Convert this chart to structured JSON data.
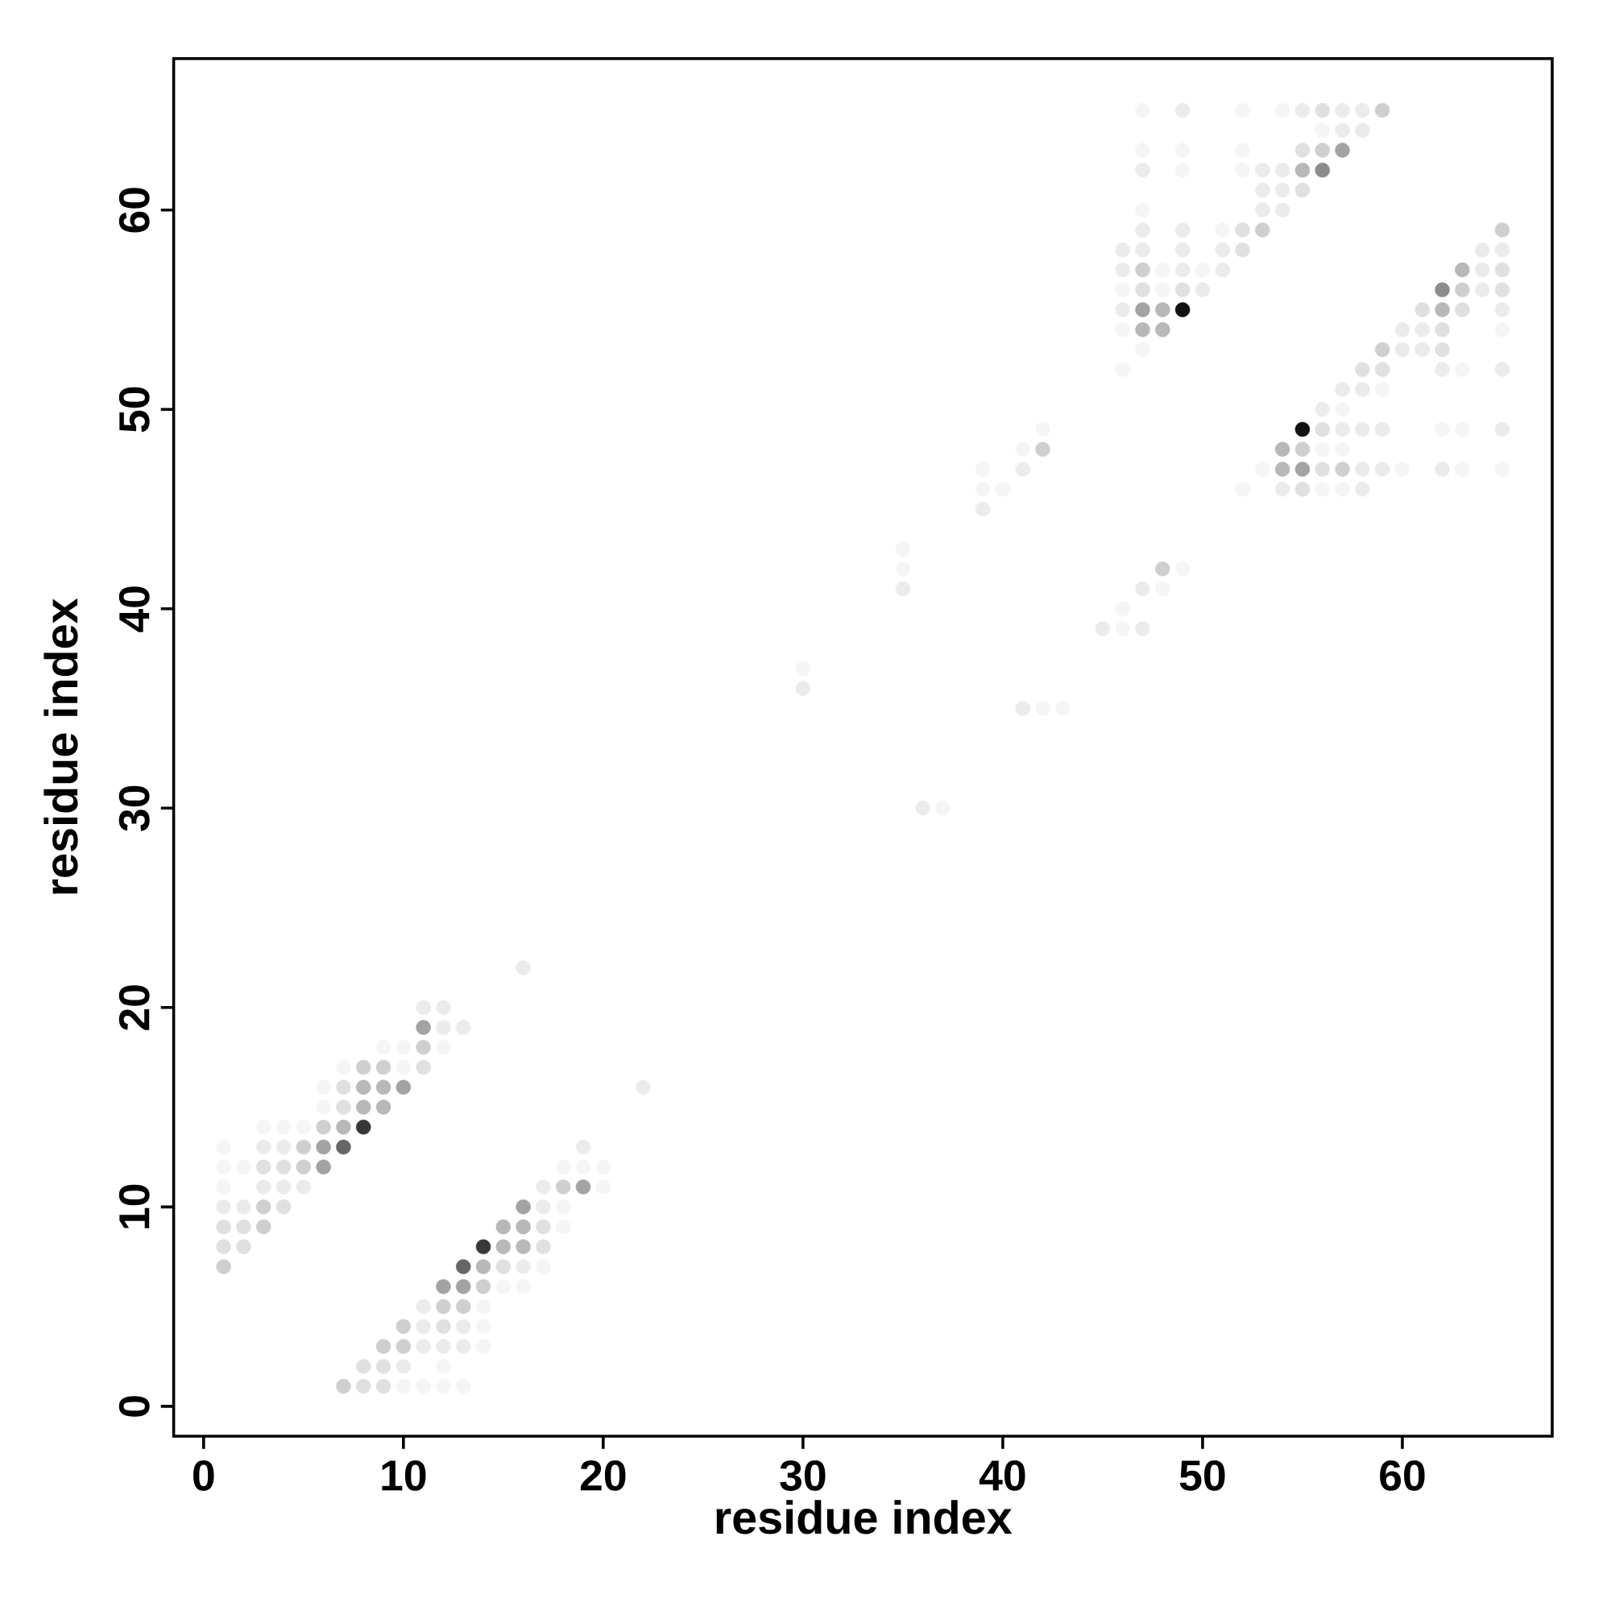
{
  "chart_data": {
    "type": "scatter",
    "xlabel": "residue index",
    "ylabel": "residue index",
    "xlim": [
      -1.5,
      67.5
    ],
    "ylim": [
      -1.5,
      67.6
    ],
    "xticks": [
      0,
      10,
      20,
      30,
      40,
      50,
      60
    ],
    "yticks": [
      0,
      10,
      20,
      30,
      40,
      50,
      60
    ],
    "marker": "circle",
    "series": [
      {
        "color": "#111111",
        "x": [
          49,
          55
        ],
        "values": [
          55,
          49
        ]
      },
      {
        "color": "#383838",
        "x": [
          8,
          14
        ],
        "values": [
          14,
          8
        ]
      },
      {
        "color": "#666666",
        "x": [
          7,
          13
        ],
        "values": [
          13,
          7
        ]
      },
      {
        "color": "#8c8c8c",
        "x": [
          56,
          62
        ],
        "values": [
          62,
          56
        ]
      },
      {
        "color": "#a3a3a3",
        "x": [
          6,
          6,
          10,
          11,
          12,
          13,
          16,
          19,
          57,
          47,
          55
        ],
        "values": [
          12,
          13,
          16,
          19,
          6,
          6,
          10,
          11,
          63,
          55,
          47
        ]
      },
      {
        "color": "#b8b8b8",
        "x": [
          7,
          8,
          9,
          8,
          9,
          14,
          15,
          16,
          15,
          16,
          48,
          47,
          48,
          55,
          63,
          62,
          54,
          54
        ],
        "values": [
          14,
          15,
          15,
          16,
          16,
          7,
          8,
          8,
          9,
          9,
          55,
          54,
          54,
          62,
          57,
          55,
          48,
          47
        ]
      },
      {
        "color": "#cfcfcf",
        "x": [
          1,
          3,
          3,
          5,
          5,
          6,
          8,
          9,
          11,
          7,
          9,
          10,
          10,
          12,
          13,
          14,
          18,
          48,
          42,
          47,
          53,
          56,
          59,
          65,
          63,
          59,
          55,
          57
        ],
        "values": [
          7,
          9,
          10,
          12,
          13,
          14,
          17,
          17,
          18,
          1,
          3,
          3,
          4,
          5,
          5,
          6,
          11,
          42,
          48,
          57,
          59,
          63,
          65,
          59,
          56,
          53,
          48,
          47
        ]
      },
      {
        "color": "#e0e0e0",
        "x": [
          1,
          1,
          2,
          2,
          4,
          3,
          4,
          7,
          7,
          11,
          8,
          9,
          8,
          9,
          12,
          15,
          17,
          17,
          49,
          47,
          52,
          52,
          55,
          56,
          55,
          65,
          65,
          61,
          63,
          62,
          62,
          58,
          59,
          56,
          56,
          55
        ],
        "values": [
          8,
          9,
          8,
          9,
          10,
          12,
          12,
          15,
          16,
          17,
          1,
          1,
          2,
          2,
          4,
          7,
          8,
          9,
          56,
          56,
          58,
          59,
          61,
          65,
          63,
          57,
          56,
          55,
          55,
          54,
          53,
          52,
          52,
          49,
          47,
          46
        ]
      },
      {
        "color": "#ebebeb",
        "x": [
          1,
          2,
          3,
          4,
          5,
          3,
          4,
          12,
          13,
          11,
          12,
          16,
          22,
          10,
          11,
          12,
          13,
          11,
          13,
          11,
          16,
          17,
          17,
          19,
          30,
          35,
          36,
          39,
          41,
          41,
          47,
          45,
          47,
          49,
          55,
          57,
          58,
          57,
          58,
          47,
          53,
          54,
          53,
          54,
          53,
          54,
          47,
          49,
          47,
          46,
          49,
          51,
          46,
          49,
          51,
          50,
          46,
          65,
          64,
          65,
          64,
          64,
          60,
          61,
          60,
          61,
          62,
          65,
          57,
          58,
          56,
          57,
          58,
          59,
          65,
          58,
          59,
          62,
          54,
          58
        ],
        "values": [
          10,
          10,
          11,
          11,
          11,
          13,
          13,
          19,
          19,
          20,
          20,
          22,
          16,
          2,
          3,
          3,
          3,
          4,
          4,
          5,
          7,
          10,
          11,
          13,
          36,
          41,
          30,
          45,
          47,
          35,
          41,
          39,
          39,
          65,
          65,
          64,
          64,
          65,
          65,
          62,
          62,
          62,
          61,
          61,
          60,
          60,
          59,
          59,
          58,
          58,
          58,
          58,
          57,
          57,
          57,
          56,
          55,
          55,
          58,
          58,
          57,
          56,
          54,
          54,
          53,
          53,
          52,
          52,
          51,
          51,
          50,
          49,
          49,
          49,
          49,
          47,
          47,
          47,
          46,
          46
        ]
      },
      {
        "color": "#f5f5f5",
        "x": [
          1,
          1,
          2,
          1,
          3,
          4,
          5,
          6,
          6,
          7,
          10,
          9,
          10,
          12,
          10,
          11,
          12,
          13,
          12,
          14,
          14,
          14,
          15,
          16,
          17,
          18,
          18,
          18,
          19,
          20,
          20,
          30,
          35,
          35,
          37,
          39,
          39,
          40,
          41,
          42,
          42,
          43,
          49,
          48,
          46,
          46,
          47,
          52,
          54,
          56,
          47,
          49,
          52,
          49,
          52,
          47,
          51,
          48,
          50,
          46,
          48,
          46,
          47,
          46,
          65,
          63,
          59,
          57,
          62,
          63,
          56,
          57,
          53,
          60,
          63,
          65,
          56,
          57,
          52
        ],
        "values": [
          11,
          12,
          12,
          13,
          14,
          14,
          14,
          15,
          16,
          17,
          17,
          18,
          18,
          18,
          1,
          1,
          1,
          1,
          2,
          3,
          4,
          5,
          6,
          6,
          7,
          9,
          10,
          12,
          12,
          12,
          11,
          37,
          43,
          42,
          30,
          47,
          46,
          46,
          48,
          49,
          35,
          35,
          42,
          41,
          40,
          39,
          65,
          65,
          65,
          64,
          63,
          63,
          63,
          62,
          62,
          60,
          59,
          57,
          57,
          56,
          56,
          54,
          53,
          52,
          54,
          52,
          51,
          50,
          49,
          49,
          48,
          48,
          47,
          47,
          47,
          47,
          46,
          46,
          46
        ]
      }
    ]
  }
}
